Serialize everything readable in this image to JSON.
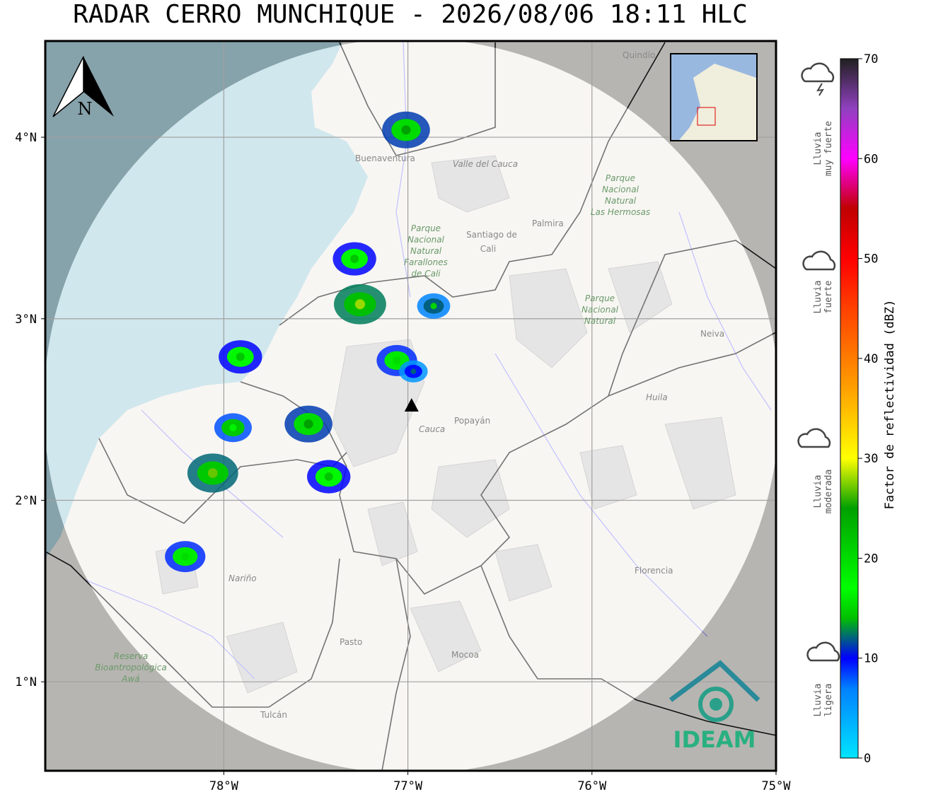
{
  "header": {
    "title": "RADAR CERRO MUNCHIQUE - 2026/08/06 18:11 HLC"
  },
  "map": {
    "xlim": [
      -78.97,
      -75
    ],
    "ylim": [
      0.51,
      4.53
    ],
    "xticks": [
      {
        "value": -78,
        "label": "78°W"
      },
      {
        "value": -77,
        "label": "77°W"
      },
      {
        "value": -76,
        "label": "76°W"
      },
      {
        "value": -75,
        "label": "75°W"
      }
    ],
    "yticks": [
      {
        "value": 4,
        "label": "4°N"
      },
      {
        "value": 3,
        "label": "3°N"
      },
      {
        "value": 2,
        "label": "2°N"
      },
      {
        "value": 1,
        "label": "1°N"
      }
    ],
    "grid": true,
    "radar": {
      "lon": -76.98,
      "lat": 2.52
    },
    "north": "N",
    "places": [
      "Quindío",
      "Buenaventura",
      "Valle del Cauca",
      "Parque",
      "Nacional",
      "Natural",
      "Las Hermosas",
      "Palmira",
      "Santiago de",
      "Cali",
      "Parque",
      "Nacional",
      "Natural",
      "Farallones",
      "de Cali",
      "Neiva",
      "Huila",
      "Popayán",
      "Cauca",
      "Nariño",
      "Florencia",
      "Pasto",
      "Mocoa",
      "Reserva",
      "Bioantropológica",
      "Awá",
      "Tulcán",
      "Parque",
      "Nacional",
      "Natural"
    ],
    "logo": "IDEAM",
    "echoes": [
      {
        "lon": -77.01,
        "lat": 4.04,
        "dbz": 25
      },
      {
        "lon": -77.29,
        "lat": 3.33,
        "dbz": 22
      },
      {
        "lon": -77.26,
        "lat": 3.08,
        "dbz": 28
      },
      {
        "lon": -77.91,
        "lat": 2.79,
        "dbz": 22
      },
      {
        "lon": -77.06,
        "lat": 2.77,
        "dbz": 20
      },
      {
        "lon": -77.54,
        "lat": 2.42,
        "dbz": 25
      },
      {
        "lon": -78.06,
        "lat": 2.15,
        "dbz": 27
      },
      {
        "lon": -77.43,
        "lat": 2.13,
        "dbz": 22
      },
      {
        "lon": -77.95,
        "lat": 2.4,
        "dbz": 18
      },
      {
        "lon": -78.21,
        "lat": 1.69,
        "dbz": 20
      },
      {
        "lon": -76.86,
        "lat": 3.07,
        "dbz": 15
      },
      {
        "lon": -76.97,
        "lat": 2.71,
        "dbz": 12
      }
    ]
  },
  "colorbar": {
    "label": "Factor de reflectividad (dBZ)",
    "clim": [
      0,
      70
    ],
    "ticks": [
      0,
      10,
      20,
      30,
      40,
      50,
      60,
      70
    ],
    "colormap": [
      [
        0,
        "#00e5ff"
      ],
      [
        7,
        "#0080ff"
      ],
      [
        10,
        "#0000ff"
      ],
      [
        14,
        "#00c000"
      ],
      [
        17,
        "#00ff00"
      ],
      [
        25,
        "#00a000"
      ],
      [
        30,
        "#ffff00"
      ],
      [
        37,
        "#ffa000"
      ],
      [
        45,
        "#ff4000"
      ],
      [
        50,
        "#ff0000"
      ],
      [
        55,
        "#c00000"
      ],
      [
        60,
        "#ff00ff"
      ],
      [
        65,
        "#9040c0"
      ],
      [
        70,
        "#202020"
      ]
    ]
  },
  "legend": [
    {
      "lines": [
        "Lluvia",
        "muy fuerte"
      ]
    },
    {
      "lines": [
        "Lluvia",
        "fuerte"
      ]
    },
    {
      "lines": [
        "Lluvia",
        "moderada"
      ]
    },
    {
      "lines": [
        "Lluvia",
        "ligera"
      ]
    }
  ]
}
